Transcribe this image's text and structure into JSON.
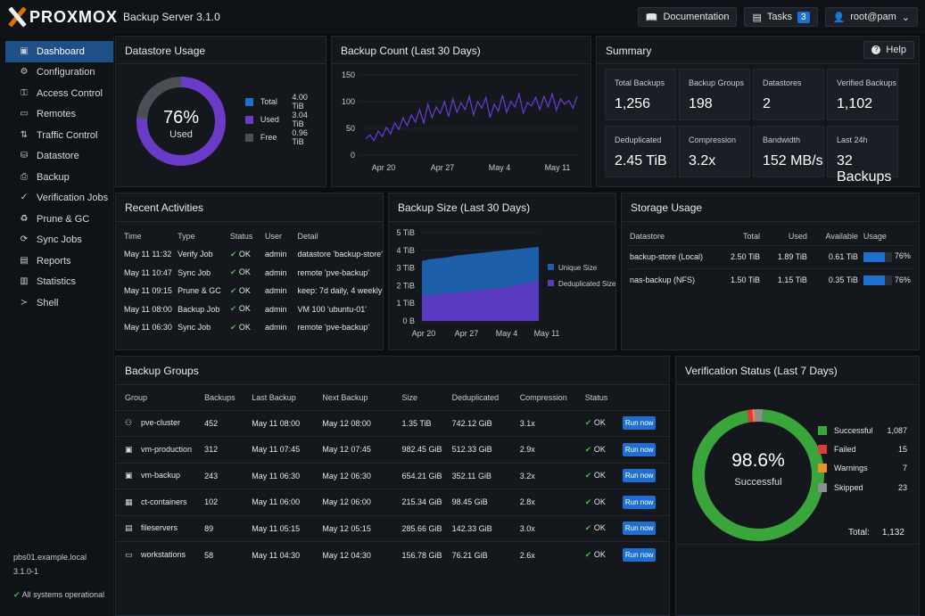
{
  "header": {
    "brand_main": "PR",
    "brand_x": "OX",
    "brand_end": "MOX",
    "title": "Backup Server 3.1.0",
    "documentation": "Documentation",
    "tasks": "Tasks",
    "tasks_count": "3",
    "user": "root@pam"
  },
  "sidebar": {
    "items": [
      {
        "label": "Dashboard",
        "icon": "dashboard-icon",
        "active": true
      },
      {
        "label": "Configuration",
        "icon": "gear-icon"
      },
      {
        "label": "Access Control",
        "icon": "key-icon"
      },
      {
        "label": "Remotes",
        "icon": "server-icon"
      },
      {
        "label": "Traffic Control",
        "icon": "traffic-icon"
      },
      {
        "label": "Datastore",
        "icon": "database-icon"
      },
      {
        "label": "Backup",
        "icon": "backup-icon"
      },
      {
        "label": "Verification Jobs",
        "icon": "check-icon"
      },
      {
        "label": "Prune & GC",
        "icon": "broom-icon"
      },
      {
        "label": "Sync Jobs",
        "icon": "sync-icon"
      },
      {
        "label": "Reports",
        "icon": "file-icon"
      },
      {
        "label": "Statistics",
        "icon": "chart-icon"
      },
      {
        "label": "Shell",
        "icon": "terminal-icon"
      }
    ],
    "host": "pbs01.example.local",
    "version": "3.1.0-1",
    "status": "All systems operational"
  },
  "datastore_usage": {
    "title": "Datastore Usage",
    "percent": "76%",
    "percent_value": 76,
    "center_label": "Used",
    "legend": [
      {
        "label": "Total",
        "value": "4.00 TiB",
        "color": "#1f6fd1"
      },
      {
        "label": "Used",
        "value": "3.04 TiB",
        "color": "#6a3bc9"
      },
      {
        "label": "Free",
        "value": "0.96 TiB",
        "color": "#4a4f56"
      }
    ]
  },
  "backup_count": {
    "title": "Backup Count (Last 30 Days)"
  },
  "summary": {
    "title": "Summary",
    "help": "Help",
    "tiles": [
      {
        "label": "Total Backups",
        "value": "1,256"
      },
      {
        "label": "Backup Groups",
        "value": "198"
      },
      {
        "label": "Datastores",
        "value": "2"
      },
      {
        "label": "Verified Backups",
        "value": "1,102"
      },
      {
        "label": "Deduplicated",
        "value": "2.45 TiB"
      },
      {
        "label": "Compression",
        "value": "3.2x"
      },
      {
        "label": "Bandwidth",
        "value": "152 MB/s"
      },
      {
        "label": "Last 24h",
        "value": "32 Backups"
      }
    ]
  },
  "recent": {
    "title": "Recent Activities",
    "headers": [
      "Time",
      "Type",
      "Status",
      "User",
      "Detail"
    ],
    "rows": [
      {
        "time": "May 11 11:32",
        "type": "Verify Job",
        "status": "OK",
        "user": "admin",
        "detail": "datastore 'backup-store'"
      },
      {
        "time": "May 11 10:47",
        "type": "Sync Job",
        "status": "OK",
        "user": "admin",
        "detail": "remote 'pve-backup'"
      },
      {
        "time": "May 11 09:15",
        "type": "Prune & GC",
        "status": "OK",
        "user": "admin",
        "detail": "keep: 7d daily, 4 weekly"
      },
      {
        "time": "May 11 08:00",
        "type": "Backup Job",
        "status": "OK",
        "user": "admin",
        "detail": "VM 100 'ubuntu-01'"
      },
      {
        "time": "May 11 06:30",
        "type": "Sync Job",
        "status": "OK",
        "user": "admin",
        "detail": "remote 'pve-backup'"
      }
    ]
  },
  "backup_size": {
    "title": "Backup Size (Last 30 Days)"
  },
  "storage": {
    "title": "Storage Usage",
    "headers": [
      "Datastore",
      "Total",
      "Used",
      "Available",
      "Usage"
    ],
    "rows": [
      {
        "name": "backup-store (Local)",
        "total": "2.50 TiB",
        "used": "1.89 TiB",
        "avail": "0.61 TiB",
        "usage": "76%",
        "frac": 0.76
      },
      {
        "name": "nas-backup (NFS)",
        "total": "1.50 TiB",
        "used": "1.15 TiB",
        "avail": "0.35 TiB",
        "usage": "76%",
        "frac": 0.76
      }
    ]
  },
  "groups": {
    "title": "Backup Groups",
    "headers": [
      "Group",
      "Backups",
      "Last Backup",
      "Next Backup",
      "Size",
      "Deduplicated",
      "Compression",
      "Status"
    ],
    "run_label": "Run now",
    "rows": [
      {
        "name": "pve-cluster",
        "icon": "cluster-icon",
        "backups": "452",
        "last": "May 11 08:00",
        "next": "May 12 08:00",
        "size": "1.35 TiB",
        "dedup": "742.12 GiB",
        "comp": "3.1x",
        "status": "OK"
      },
      {
        "name": "vm-production",
        "icon": "vm-icon",
        "backups": "312",
        "last": "May 11 07:45",
        "next": "May 12 07:45",
        "size": "982.45 GiB",
        "dedup": "512.33 GiB",
        "comp": "2.9x",
        "status": "OK"
      },
      {
        "name": "vm-backup",
        "icon": "vm-icon",
        "backups": "243",
        "last": "May 11 06:30",
        "next": "May 12 06:30",
        "size": "654.21 GiB",
        "dedup": "352.11 GiB",
        "comp": "3.2x",
        "status": "OK"
      },
      {
        "name": "ct-containers",
        "icon": "container-icon",
        "backups": "102",
        "last": "May 11 06:00",
        "next": "May 12 06:00",
        "size": "215.34 GiB",
        "dedup": "98.45 GiB",
        "comp": "2.8x",
        "status": "OK"
      },
      {
        "name": "fileservers",
        "icon": "fileserver-icon",
        "backups": "89",
        "last": "May 11 05:15",
        "next": "May 12 05:15",
        "size": "285.66 GiB",
        "dedup": "142.33 GiB",
        "comp": "3.0x",
        "status": "OK"
      },
      {
        "name": "workstations",
        "icon": "monitor-icon",
        "backups": "58",
        "last": "May 11 04:30",
        "next": "May 12 04:30",
        "size": "156.78 GiB",
        "dedup": "76.21 GiB",
        "comp": "2.6x",
        "status": "OK"
      }
    ]
  },
  "verification": {
    "title": "Verification Status (Last 7 Days)",
    "percent": "98.6%",
    "center_label": "Successful",
    "total_label": "Total:",
    "total": "1,132",
    "legend": [
      {
        "label": "Successful",
        "value": "1,087",
        "count": 1087,
        "color": "#3aa53a"
      },
      {
        "label": "Failed",
        "value": "15",
        "count": 15,
        "color": "#e03a3a"
      },
      {
        "label": "Warnings",
        "value": "7",
        "count": 7,
        "color": "#e8932a"
      },
      {
        "label": "Skipped",
        "value": "23",
        "count": 23,
        "color": "#8a8f96"
      }
    ]
  },
  "chart_data": [
    {
      "type": "line",
      "title": "Backup Count (Last 30 Days)",
      "x_ticks": [
        "Apr 20",
        "Apr 27",
        "May 4",
        "May 11"
      ],
      "y_ticks": [
        "0",
        "50",
        "100",
        "150"
      ],
      "ylim": [
        0,
        150
      ],
      "series": [
        {
          "values": [
            30,
            38,
            27,
            45,
            35,
            52,
            40,
            60,
            48,
            70,
            55,
            75,
            62,
            85,
            60,
            95,
            70,
            90,
            78,
            100,
            72,
            105,
            80,
            98,
            85,
            110,
            75,
            100,
            88,
            108,
            70,
            95,
            82,
            112,
            80,
            100,
            90,
            115,
            78,
            98,
            92,
            108,
            85,
            110,
            90,
            115,
            84,
            105,
            95,
            102,
            88,
            110
          ]
        }
      ]
    },
    {
      "type": "area",
      "title": "Backup Size (Last 30 Days)",
      "x_ticks": [
        "Apr 20",
        "Apr 27",
        "May 4",
        "May 11"
      ],
      "y_ticks": [
        "0 B",
        "1 TiB",
        "2 TiB",
        "3 TiB",
        "4 TiB",
        "5 TiB"
      ],
      "ylim": [
        0,
        5
      ],
      "series": [
        {
          "name": "Unique Size",
          "color": "#1d5fa8",
          "values": [
            3.4,
            3.5,
            3.55,
            3.6,
            3.7,
            3.75,
            3.8,
            3.85,
            3.9,
            3.95,
            4.0,
            4.05,
            4.1,
            4.15,
            4.2
          ]
        },
        {
          "name": "Deduplicated Size",
          "color": "#5a3bc0",
          "values": [
            1.4,
            1.45,
            1.5,
            1.55,
            1.6,
            1.65,
            1.7,
            1.75,
            1.8,
            1.85,
            1.9,
            2.0,
            2.1,
            2.2,
            2.3
          ]
        }
      ]
    }
  ]
}
